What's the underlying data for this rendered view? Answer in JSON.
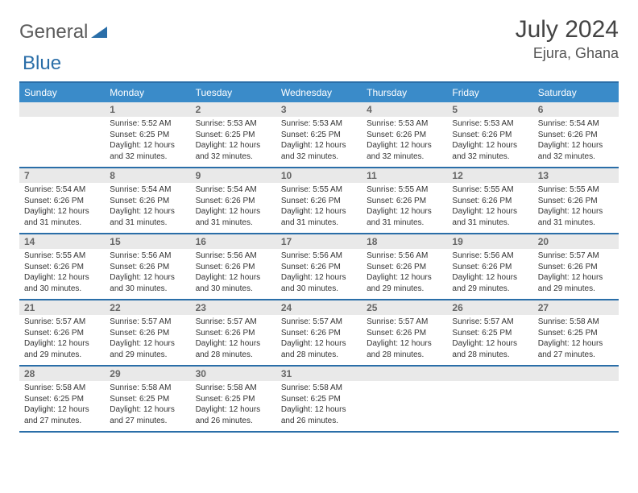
{
  "logo": {
    "word1": "General",
    "word2": "Blue"
  },
  "title": "July 2024",
  "location": "Ejura, Ghana",
  "colors": {
    "header_bg": "#3a8bc9",
    "header_border": "#2a6ea8",
    "daynum_bg": "#e9e9e9",
    "logo_accent": "#2a6ea8"
  },
  "days_of_week": [
    "Sunday",
    "Monday",
    "Tuesday",
    "Wednesday",
    "Thursday",
    "Friday",
    "Saturday"
  ],
  "weeks": [
    [
      {
        "n": "",
        "lines": []
      },
      {
        "n": "1",
        "lines": [
          "Sunrise: 5:52 AM",
          "Sunset: 6:25 PM",
          "Daylight: 12 hours and 32 minutes."
        ]
      },
      {
        "n": "2",
        "lines": [
          "Sunrise: 5:53 AM",
          "Sunset: 6:25 PM",
          "Daylight: 12 hours and 32 minutes."
        ]
      },
      {
        "n": "3",
        "lines": [
          "Sunrise: 5:53 AM",
          "Sunset: 6:25 PM",
          "Daylight: 12 hours and 32 minutes."
        ]
      },
      {
        "n": "4",
        "lines": [
          "Sunrise: 5:53 AM",
          "Sunset: 6:26 PM",
          "Daylight: 12 hours and 32 minutes."
        ]
      },
      {
        "n": "5",
        "lines": [
          "Sunrise: 5:53 AM",
          "Sunset: 6:26 PM",
          "Daylight: 12 hours and 32 minutes."
        ]
      },
      {
        "n": "6",
        "lines": [
          "Sunrise: 5:54 AM",
          "Sunset: 6:26 PM",
          "Daylight: 12 hours and 32 minutes."
        ]
      }
    ],
    [
      {
        "n": "7",
        "lines": [
          "Sunrise: 5:54 AM",
          "Sunset: 6:26 PM",
          "Daylight: 12 hours and 31 minutes."
        ]
      },
      {
        "n": "8",
        "lines": [
          "Sunrise: 5:54 AM",
          "Sunset: 6:26 PM",
          "Daylight: 12 hours and 31 minutes."
        ]
      },
      {
        "n": "9",
        "lines": [
          "Sunrise: 5:54 AM",
          "Sunset: 6:26 PM",
          "Daylight: 12 hours and 31 minutes."
        ]
      },
      {
        "n": "10",
        "lines": [
          "Sunrise: 5:55 AM",
          "Sunset: 6:26 PM",
          "Daylight: 12 hours and 31 minutes."
        ]
      },
      {
        "n": "11",
        "lines": [
          "Sunrise: 5:55 AM",
          "Sunset: 6:26 PM",
          "Daylight: 12 hours and 31 minutes."
        ]
      },
      {
        "n": "12",
        "lines": [
          "Sunrise: 5:55 AM",
          "Sunset: 6:26 PM",
          "Daylight: 12 hours and 31 minutes."
        ]
      },
      {
        "n": "13",
        "lines": [
          "Sunrise: 5:55 AM",
          "Sunset: 6:26 PM",
          "Daylight: 12 hours and 31 minutes."
        ]
      }
    ],
    [
      {
        "n": "14",
        "lines": [
          "Sunrise: 5:55 AM",
          "Sunset: 6:26 PM",
          "Daylight: 12 hours and 30 minutes."
        ]
      },
      {
        "n": "15",
        "lines": [
          "Sunrise: 5:56 AM",
          "Sunset: 6:26 PM",
          "Daylight: 12 hours and 30 minutes."
        ]
      },
      {
        "n": "16",
        "lines": [
          "Sunrise: 5:56 AM",
          "Sunset: 6:26 PM",
          "Daylight: 12 hours and 30 minutes."
        ]
      },
      {
        "n": "17",
        "lines": [
          "Sunrise: 5:56 AM",
          "Sunset: 6:26 PM",
          "Daylight: 12 hours and 30 minutes."
        ]
      },
      {
        "n": "18",
        "lines": [
          "Sunrise: 5:56 AM",
          "Sunset: 6:26 PM",
          "Daylight: 12 hours and 29 minutes."
        ]
      },
      {
        "n": "19",
        "lines": [
          "Sunrise: 5:56 AM",
          "Sunset: 6:26 PM",
          "Daylight: 12 hours and 29 minutes."
        ]
      },
      {
        "n": "20",
        "lines": [
          "Sunrise: 5:57 AM",
          "Sunset: 6:26 PM",
          "Daylight: 12 hours and 29 minutes."
        ]
      }
    ],
    [
      {
        "n": "21",
        "lines": [
          "Sunrise: 5:57 AM",
          "Sunset: 6:26 PM",
          "Daylight: 12 hours and 29 minutes."
        ]
      },
      {
        "n": "22",
        "lines": [
          "Sunrise: 5:57 AM",
          "Sunset: 6:26 PM",
          "Daylight: 12 hours and 29 minutes."
        ]
      },
      {
        "n": "23",
        "lines": [
          "Sunrise: 5:57 AM",
          "Sunset: 6:26 PM",
          "Daylight: 12 hours and 28 minutes."
        ]
      },
      {
        "n": "24",
        "lines": [
          "Sunrise: 5:57 AM",
          "Sunset: 6:26 PM",
          "Daylight: 12 hours and 28 minutes."
        ]
      },
      {
        "n": "25",
        "lines": [
          "Sunrise: 5:57 AM",
          "Sunset: 6:26 PM",
          "Daylight: 12 hours and 28 minutes."
        ]
      },
      {
        "n": "26",
        "lines": [
          "Sunrise: 5:57 AM",
          "Sunset: 6:25 PM",
          "Daylight: 12 hours and 28 minutes."
        ]
      },
      {
        "n": "27",
        "lines": [
          "Sunrise: 5:58 AM",
          "Sunset: 6:25 PM",
          "Daylight: 12 hours and 27 minutes."
        ]
      }
    ],
    [
      {
        "n": "28",
        "lines": [
          "Sunrise: 5:58 AM",
          "Sunset: 6:25 PM",
          "Daylight: 12 hours and 27 minutes."
        ]
      },
      {
        "n": "29",
        "lines": [
          "Sunrise: 5:58 AM",
          "Sunset: 6:25 PM",
          "Daylight: 12 hours and 27 minutes."
        ]
      },
      {
        "n": "30",
        "lines": [
          "Sunrise: 5:58 AM",
          "Sunset: 6:25 PM",
          "Daylight: 12 hours and 26 minutes."
        ]
      },
      {
        "n": "31",
        "lines": [
          "Sunrise: 5:58 AM",
          "Sunset: 6:25 PM",
          "Daylight: 12 hours and 26 minutes."
        ]
      },
      {
        "n": "",
        "lines": []
      },
      {
        "n": "",
        "lines": []
      },
      {
        "n": "",
        "lines": []
      }
    ]
  ]
}
